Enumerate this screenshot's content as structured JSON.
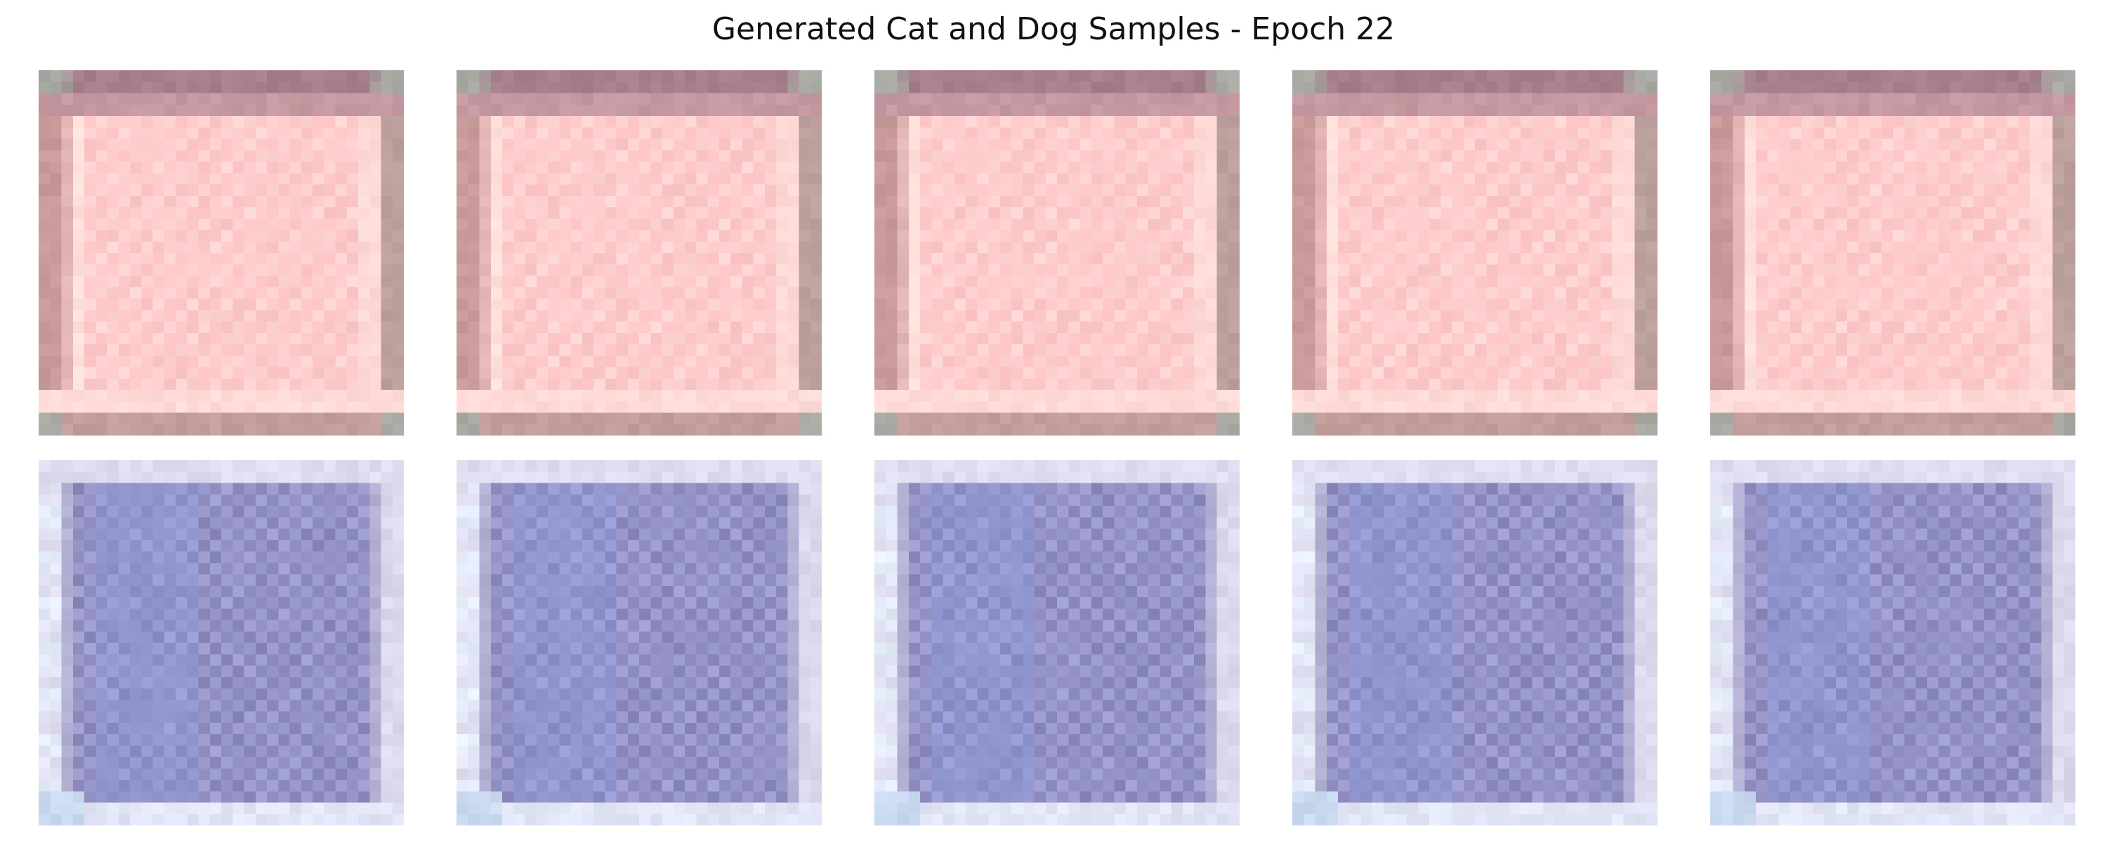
{
  "figure": {
    "title": "Generated Cat and Dog Samples - Epoch 22"
  },
  "grid": {
    "rows": 2,
    "columns": 5,
    "pixels_per_sample": 32
  },
  "palette": {
    "row1": {
      "border_top": "#a67f8c",
      "border_side": "#c99a9a",
      "inner": "#ffc8c8",
      "inner_light": "#ffd4d2",
      "highlight": "#ffe0da",
      "corner": "#a9a9a3"
    },
    "row2": {
      "border": "#ddd8ec",
      "inner": "#9d9cd0",
      "inner_dark": "#8c89bd",
      "inner_blue": "#8d9ad8",
      "edge_light": "#e6eefc",
      "corner": "#c9d9f0"
    }
  },
  "samples": [
    {
      "row": 0,
      "col": 0,
      "kind": "pink-frame-sample"
    },
    {
      "row": 0,
      "col": 1,
      "kind": "pink-frame-sample"
    },
    {
      "row": 0,
      "col": 2,
      "kind": "pink-frame-sample"
    },
    {
      "row": 0,
      "col": 3,
      "kind": "pink-frame-sample"
    },
    {
      "row": 0,
      "col": 4,
      "kind": "pink-frame-sample"
    },
    {
      "row": 1,
      "col": 0,
      "kind": "lavender-grid-sample"
    },
    {
      "row": 1,
      "col": 1,
      "kind": "lavender-grid-sample"
    },
    {
      "row": 1,
      "col": 2,
      "kind": "lavender-grid-sample"
    },
    {
      "row": 1,
      "col": 3,
      "kind": "lavender-grid-sample"
    },
    {
      "row": 1,
      "col": 4,
      "kind": "lavender-grid-sample"
    }
  ]
}
